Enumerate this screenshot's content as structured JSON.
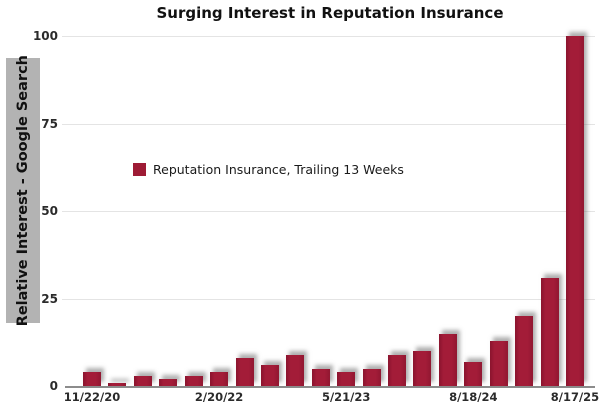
{
  "title": "Surging Interest in Reputation Insurance",
  "y_axis_label": "Relative Interest - Google Search",
  "legend": {
    "label": "Reputation Insurance, Trailing 13 Weeks",
    "swatch_color": "#9e1b35"
  },
  "colors": {
    "bar": "#9e1b35",
    "gridline": "#e4e4e4",
    "axis_line": "#8c8c8c",
    "ylabel_strip_background": "#b3b3b3",
    "text": "#111111"
  },
  "chart_data": {
    "type": "bar",
    "title": "Surging Interest in Reputation Insurance",
    "ylabel": "Relative Interest - Google Search",
    "xlabel": "",
    "ylim": [
      0,
      100
    ],
    "y_ticks": [
      100,
      75,
      50,
      25,
      0
    ],
    "grid": "horizontal",
    "legend_position": "inside-left",
    "n_bars": 20,
    "series": [
      {
        "name": "Reputation Insurance, Trailing 13 Weeks",
        "values": [
          4,
          1,
          3,
          2,
          3,
          4,
          8,
          6,
          9,
          5,
          4,
          5,
          9,
          10,
          15,
          7,
          13,
          20,
          31,
          100
        ]
      }
    ],
    "x_tick_labels": [
      {
        "label": "11/22/20",
        "bar_index": 0
      },
      {
        "label": "2/20/22",
        "bar_index": 5
      },
      {
        "label": "5/21/23",
        "bar_index": 10
      },
      {
        "label": "8/18/24",
        "bar_index": 15
      },
      {
        "label": "8/17/25",
        "bar_index": 19
      }
    ]
  }
}
